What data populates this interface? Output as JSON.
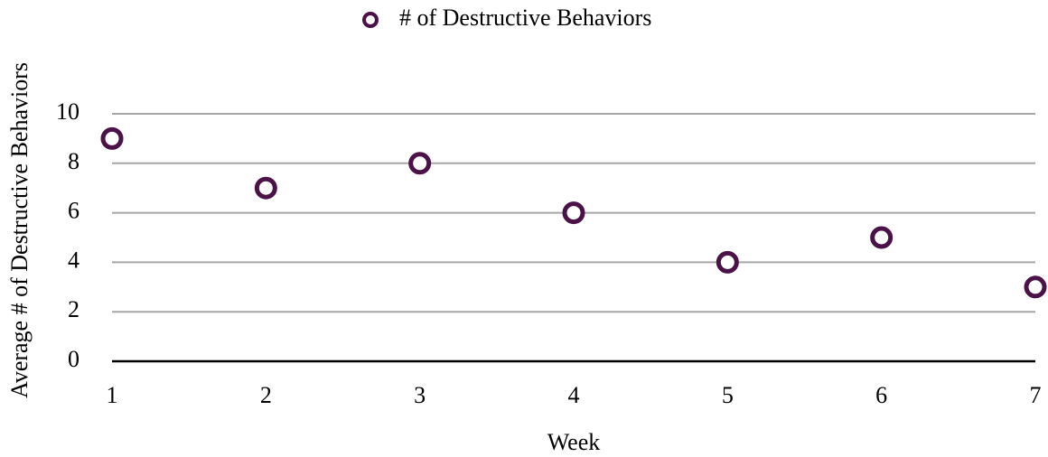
{
  "chart_data": {
    "type": "scatter",
    "x": [
      1,
      2,
      3,
      4,
      5,
      6,
      7
    ],
    "series": [
      {
        "name": "# of Destructive Behaviors",
        "color": "#4b1248",
        "values": [
          9,
          7,
          8,
          6,
          4,
          5,
          3
        ]
      }
    ],
    "xlabel": "Week",
    "ylabel": "Average # of Destructive Behaviors",
    "xlim": [
      1,
      7
    ],
    "xticks": [
      1,
      2,
      3,
      4,
      5,
      6,
      7
    ],
    "ylim": [
      0,
      10
    ],
    "yticks": [
      0,
      2,
      4,
      6,
      8,
      10
    ],
    "grid": true,
    "legend": "top"
  }
}
